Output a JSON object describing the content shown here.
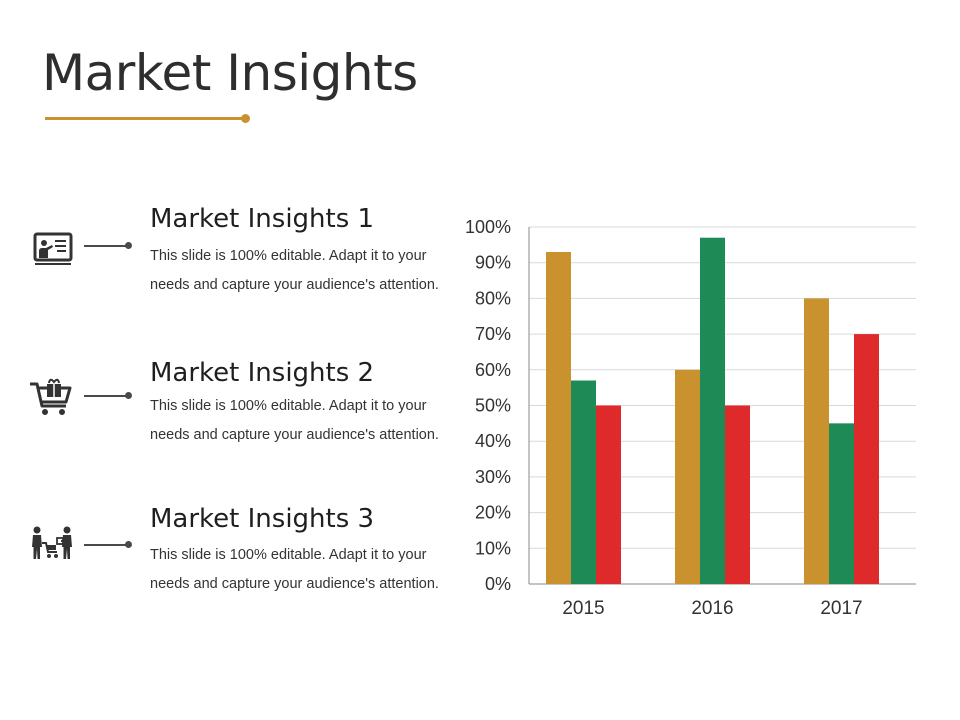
{
  "slide": {
    "title": "Market Insights",
    "accent_color": "#c9922f"
  },
  "items": [
    {
      "icon": "presentation-board-icon",
      "heading": "Market Insights 1",
      "text": "This slide is 100% editable. Adapt it to your needs and capture your audience's attention."
    },
    {
      "icon": "shopping-cart-gift-icon",
      "heading": "Market Insights 2",
      "text": "This slide is 100% editable. Adapt it to your needs and capture your audience's attention."
    },
    {
      "icon": "people-trade-icon",
      "heading": "Market Insights 3",
      "text": "This slide is 100% editable. Adapt it to your needs and capture your audience's attention."
    }
  ],
  "chart_data": {
    "type": "bar",
    "categories": [
      "2015",
      "2016",
      "2017"
    ],
    "series": [
      {
        "values": [
          93,
          60,
          80
        ],
        "color": "#c9922f"
      },
      {
        "values": [
          57,
          97,
          45
        ],
        "color": "#1e8a55"
      },
      {
        "values": [
          50,
          50,
          70
        ],
        "color": "#de2a2a"
      }
    ],
    "ylim": [
      0,
      100
    ],
    "yticks": [
      "0%",
      "10%",
      "20%",
      "30%",
      "40%",
      "50%",
      "60%",
      "70%",
      "80%",
      "90%",
      "100%"
    ],
    "grid": true,
    "legend": "none"
  }
}
